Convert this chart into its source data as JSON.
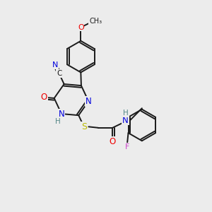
{
  "bg": "#ececec",
  "bc": "#1a1a1a",
  "colors": {
    "N": "#0000dd",
    "O": "#ee0000",
    "S": "#bbbb00",
    "F": "#cc44cc",
    "H": "#558888",
    "C": "#1a1a1a"
  },
  "lw": 1.4,
  "fs": 7.5
}
